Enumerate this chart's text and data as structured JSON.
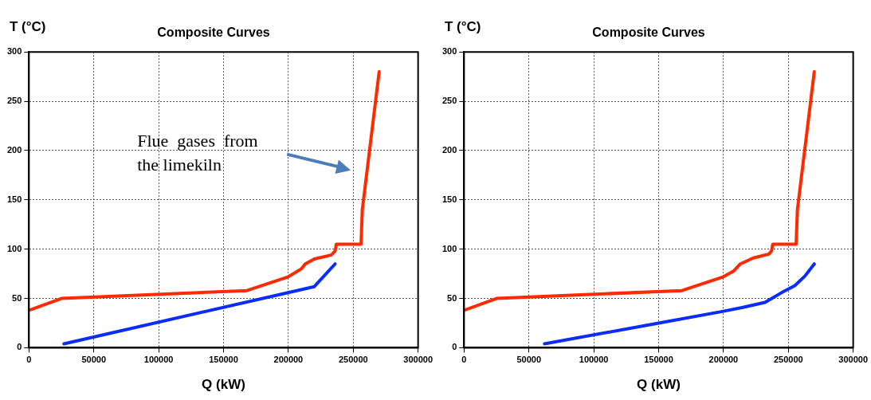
{
  "chart_data": [
    {
      "type": "line",
      "title": "Composite Curves",
      "xlabel": "Q (kW)",
      "ylabel": "T (°C)",
      "xlim": [
        0,
        300000
      ],
      "xticks": [
        0,
        50000,
        100000,
        150000,
        200000,
        250000,
        300000
      ],
      "ylim": [
        0,
        300
      ],
      "yticks": [
        0,
        50,
        100,
        150,
        200,
        250,
        300
      ],
      "grid": true,
      "legend": false,
      "marker": "none",
      "line_style": "solid",
      "annotations": [
        "Flue  gases  from\nthe limekiln"
      ],
      "series": [
        {
          "color": "#ff2a00",
          "x": [
            0,
            25000,
            168000,
            200000,
            210000,
            213000,
            220000,
            233000,
            236000,
            237000,
            256000,
            257000,
            270000
          ],
          "values": [
            38,
            50,
            58,
            72,
            80,
            85,
            90,
            94,
            98,
            105,
            105,
            140,
            280
          ]
        },
        {
          "color": "#0a2cff",
          "x": [
            27000,
            220000,
            236000
          ],
          "values": [
            4,
            62,
            85
          ]
        }
      ]
    },
    {
      "type": "line",
      "title": "Composite Curves",
      "xlabel": "Q (kW)",
      "ylabel": "T (°C)",
      "xlim": [
        0,
        300000
      ],
      "xticks": [
        0,
        50000,
        100000,
        150000,
        200000,
        250000,
        300000
      ],
      "ylim": [
        0,
        300
      ],
      "yticks": [
        0,
        50,
        100,
        150,
        200,
        250,
        300
      ],
      "grid": true,
      "legend": false,
      "marker": "none",
      "line_style": "solid",
      "series": [
        {
          "color": "#ff2a00",
          "x": [
            0,
            25000,
            168000,
            200000,
            208000,
            213000,
            223000,
            235000,
            237000,
            238000,
            256000,
            257000,
            270000
          ],
          "values": [
            38,
            50,
            58,
            72,
            78,
            85,
            91,
            95,
            98,
            105,
            105,
            140,
            280
          ]
        },
        {
          "color": "#0a2cff",
          "x": [
            62000,
            150000,
            200000,
            215000,
            232000,
            245000,
            255000,
            263000,
            270000
          ],
          "values": [
            4,
            25,
            37,
            41,
            46,
            56,
            63,
            73,
            85
          ]
        }
      ]
    }
  ]
}
